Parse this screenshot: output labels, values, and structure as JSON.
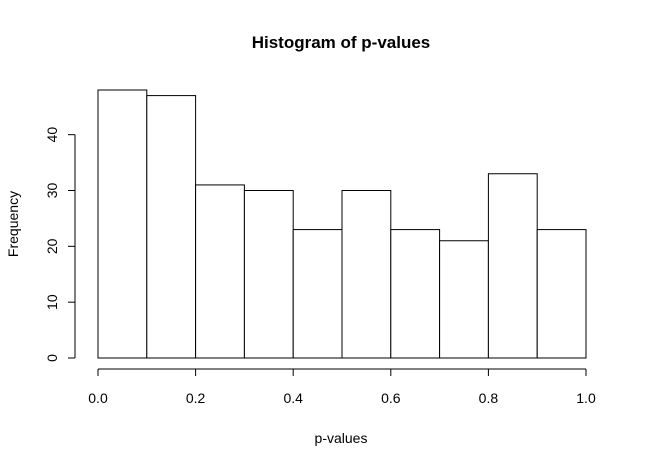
{
  "chart_data": {
    "type": "bar",
    "title": "Histogram of p-values",
    "xlabel": "p-values",
    "ylabel": "Frequency",
    "bins": [
      {
        "start": 0.0,
        "end": 0.1,
        "value": 48
      },
      {
        "start": 0.1,
        "end": 0.2,
        "value": 47
      },
      {
        "start": 0.2,
        "end": 0.3,
        "value": 31
      },
      {
        "start": 0.3,
        "end": 0.4,
        "value": 30
      },
      {
        "start": 0.4,
        "end": 0.5,
        "value": 23
      },
      {
        "start": 0.5,
        "end": 0.6,
        "value": 30
      },
      {
        "start": 0.6,
        "end": 0.7,
        "value": 23
      },
      {
        "start": 0.7,
        "end": 0.8,
        "value": 21
      },
      {
        "start": 0.8,
        "end": 0.9,
        "value": 33
      },
      {
        "start": 0.9,
        "end": 1.0,
        "value": 23
      }
    ],
    "xlim": [
      0.0,
      1.0
    ],
    "ylim": [
      0,
      48
    ],
    "x_ticks": [
      "0.0",
      "0.2",
      "0.4",
      "0.6",
      "0.8",
      "1.0"
    ],
    "y_ticks": [
      "0",
      "10",
      "20",
      "30",
      "40"
    ],
    "grid": false,
    "legend": false
  }
}
